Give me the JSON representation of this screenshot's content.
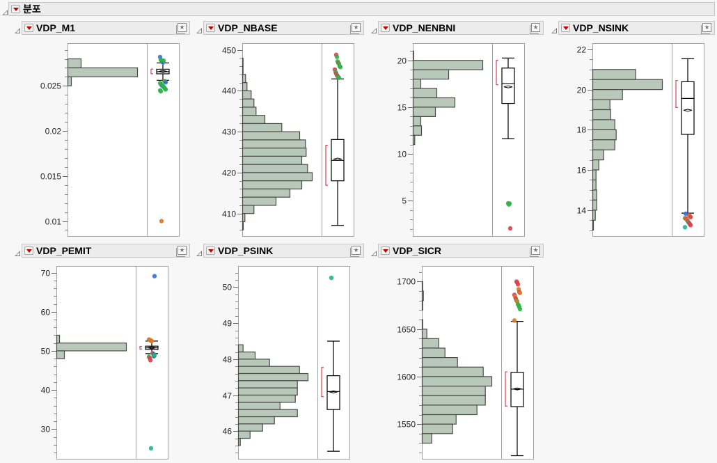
{
  "report": {
    "title": "분포"
  },
  "colors": {
    "bar_fill": "#b9c9b9",
    "bar_stroke": "#4a4a4a",
    "bracket": "#d8414f",
    "blue": "#3b6fd8",
    "green": "#2fb34a",
    "orange": "#d77a2a",
    "red": "#d8414f",
    "teal": "#22b38a"
  },
  "chart_data": [
    {
      "type": "histogram+boxplot",
      "title": "VDP_M1",
      "ylim": [
        0.00834,
        0.02974
      ],
      "ticks": [
        {
          "value": 0.025,
          "label": "0.025"
        },
        {
          "value": 0.02,
          "label": "0.02"
        },
        {
          "value": 0.015,
          "label": "0.015"
        },
        {
          "value": 0.01,
          "label": "0.01"
        }
      ],
      "minor_step": 0.001,
      "bins": [
        {
          "lo": 0.027,
          "hi": 0.028,
          "rel": 19
        },
        {
          "lo": 0.026,
          "hi": 0.027,
          "rel": 100
        },
        {
          "lo": 0.025,
          "hi": 0.026,
          "rel": 5
        }
      ],
      "box": {
        "whisker_low": 0.02562,
        "q1": 0.02634,
        "median": 0.02657,
        "q3": 0.02685,
        "whisker_high": 0.02755,
        "mean": 0.0266
      },
      "shortest_half": [
        0.02635,
        0.02685
      ],
      "outliers": [
        [
          "blue",
          0.0282
        ],
        [
          "green",
          0.0279
        ],
        [
          "green",
          0.0278
        ],
        [
          "green",
          0.0277
        ],
        [
          "blue",
          0.0276
        ],
        [
          "green",
          0.0278
        ],
        [
          "orange",
          0.0255
        ],
        [
          "green",
          0.0255
        ],
        [
          "blue",
          0.0254
        ],
        [
          "green",
          0.0253
        ],
        [
          "green",
          0.0252
        ],
        [
          "green",
          0.0251
        ],
        [
          "blue",
          0.025
        ],
        [
          "green",
          0.025
        ],
        [
          "green",
          0.0249
        ],
        [
          "green",
          0.0248
        ],
        [
          "green",
          0.0247
        ],
        [
          "green",
          0.0246
        ],
        [
          "green",
          0.0245
        ],
        [
          "green",
          0.0244
        ],
        [
          "orange",
          0.01
        ]
      ]
    },
    {
      "type": "histogram+boxplot",
      "title": "VDP_NBASE",
      "ylim": [
        404.5,
        451.65
      ],
      "ticks": [
        {
          "value": 450,
          "label": "450"
        },
        {
          "value": 440,
          "label": "440"
        },
        {
          "value": 430,
          "label": "430"
        },
        {
          "value": 420,
          "label": "420"
        },
        {
          "value": 410,
          "label": "410"
        }
      ],
      "minor_step": 2,
      "bins": [
        {
          "lo": 446,
          "hi": 448,
          "rel": 0.7
        },
        {
          "lo": 444,
          "hi": 446,
          "rel": 0.7
        },
        {
          "lo": 442,
          "hi": 444,
          "rel": 4.3
        },
        {
          "lo": 440,
          "hi": 442,
          "rel": 6.3
        },
        {
          "lo": 438,
          "hi": 440,
          "rel": 12.3
        },
        {
          "lo": 436,
          "hi": 438,
          "rel": 16.3
        },
        {
          "lo": 434,
          "hi": 436,
          "rel": 19.3
        },
        {
          "lo": 432,
          "hi": 434,
          "rel": 32
        },
        {
          "lo": 430,
          "hi": 432,
          "rel": 56.3
        },
        {
          "lo": 428,
          "hi": 430,
          "rel": 82
        },
        {
          "lo": 426,
          "hi": 428,
          "rel": 90.3
        },
        {
          "lo": 424,
          "hi": 426,
          "rel": 91.3
        },
        {
          "lo": 422,
          "hi": 424,
          "rel": 85
        },
        {
          "lo": 420,
          "hi": 422,
          "rel": 93.3
        },
        {
          "lo": 418,
          "hi": 420,
          "rel": 100
        },
        {
          "lo": 416,
          "hi": 418,
          "rel": 85
        },
        {
          "lo": 414,
          "hi": 416,
          "rel": 68
        },
        {
          "lo": 412,
          "hi": 414,
          "rel": 48
        },
        {
          "lo": 410,
          "hi": 412,
          "rel": 16.3
        },
        {
          "lo": 408,
          "hi": 410,
          "rel": 3.3
        },
        {
          "lo": 406,
          "hi": 408,
          "rel": 1
        }
      ],
      "box": {
        "whisker_low": 407.1,
        "q1": 418.0,
        "median": 423.0,
        "q3": 428.1,
        "whisker_high": 442.9,
        "mean": 423.3
      },
      "shortest_half": [
        416.9,
        426.7
      ],
      "outliers": [
        [
          "red",
          448.8
        ],
        [
          "green",
          448.3
        ],
        [
          "green",
          447.2
        ],
        [
          "red",
          446.8
        ],
        [
          "green",
          446.6
        ],
        [
          "green",
          446.0
        ],
        [
          "green",
          445.8
        ],
        [
          "red",
          445.2
        ],
        [
          "green",
          444.6
        ],
        [
          "red",
          444.2
        ],
        [
          "green",
          443.8
        ],
        [
          "red",
          443.6
        ],
        [
          "green",
          443.3
        ],
        [
          "green",
          443.2
        ]
      ]
    },
    {
      "type": "histogram+boxplot",
      "title": "VDP_NENBNI",
      "ylim": [
        1.23,
        21.84
      ],
      "ticks": [
        {
          "value": 20,
          "label": "20"
        },
        {
          "value": 15,
          "label": "15"
        },
        {
          "value": 10,
          "label": "10"
        },
        {
          "value": 5,
          "label": "5"
        }
      ],
      "minor_step": 1,
      "bins": [
        {
          "lo": 20,
          "hi": 21,
          "rel": 0.7
        },
        {
          "lo": 19,
          "hi": 20,
          "rel": 100
        },
        {
          "lo": 18,
          "hi": 19,
          "rel": 51
        },
        {
          "lo": 17,
          "hi": 18,
          "rel": 11
        },
        {
          "lo": 16,
          "hi": 17,
          "rel": 34
        },
        {
          "lo": 15,
          "hi": 16,
          "rel": 60
        },
        {
          "lo": 14,
          "hi": 15,
          "rel": 32
        },
        {
          "lo": 13,
          "hi": 14,
          "rel": 11
        },
        {
          "lo": 12,
          "hi": 13,
          "rel": 12
        },
        {
          "lo": 11,
          "hi": 12,
          "rel": 2.3
        }
      ],
      "box": {
        "whisker_low": 11.63,
        "q1": 15.4,
        "median": 17.52,
        "q3": 19.18,
        "whisker_high": 20.25,
        "mean": 17.17
      },
      "shortest_half": [
        17.4,
        20.0
      ],
      "outliers": [
        [
          "green",
          4.72
        ],
        [
          "green",
          4.6
        ],
        [
          "green",
          4.7
        ],
        [
          "red",
          2.05
        ]
      ]
    },
    {
      "type": "histogram+boxplot",
      "title": "VDP_NSINK",
      "ylim": [
        12.71,
        22.31
      ],
      "ticks": [
        {
          "value": 22,
          "label": "22"
        },
        {
          "value": 20,
          "label": "20"
        },
        {
          "value": 18,
          "label": "18"
        },
        {
          "value": 16,
          "label": "16"
        },
        {
          "value": 14,
          "label": "14"
        }
      ],
      "minor_step": 0.5,
      "bins": [
        {
          "lo": 20.5,
          "hi": 21,
          "rel": 61.7
        },
        {
          "lo": 20,
          "hi": 20.5,
          "rel": 100
        },
        {
          "lo": 19.5,
          "hi": 20,
          "rel": 42.7
        },
        {
          "lo": 19,
          "hi": 19.5,
          "rel": 24.7
        },
        {
          "lo": 18.5,
          "hi": 19,
          "rel": 25.7
        },
        {
          "lo": 18,
          "hi": 18.5,
          "rel": 31.7
        },
        {
          "lo": 17.5,
          "hi": 18,
          "rel": 33.7
        },
        {
          "lo": 17,
          "hi": 17.5,
          "rel": 31.7
        },
        {
          "lo": 16.5,
          "hi": 17,
          "rel": 15.7
        },
        {
          "lo": 16,
          "hi": 16.5,
          "rel": 8.7
        },
        {
          "lo": 15.5,
          "hi": 16,
          "rel": 4.7
        },
        {
          "lo": 15,
          "hi": 15.5,
          "rel": 4.7
        },
        {
          "lo": 14.5,
          "hi": 15,
          "rel": 5.7
        },
        {
          "lo": 14,
          "hi": 14.5,
          "rel": 5.7
        },
        {
          "lo": 13.5,
          "hi": 14,
          "rel": 3.7
        },
        {
          "lo": 13,
          "hi": 13.5,
          "rel": 1
        }
      ],
      "box": {
        "whisker_low": 13.85,
        "q1": 17.77,
        "median": 19.56,
        "q3": 20.39,
        "whisker_high": 21.54,
        "mean": 18.97
      },
      "shortest_half": [
        19.11,
        20.45
      ],
      "outliers": [
        [
          "red",
          13.75
        ],
        [
          "orange",
          13.7
        ],
        [
          "red",
          13.65
        ],
        [
          "teal",
          13.6
        ],
        [
          "orange",
          13.6
        ],
        [
          "red",
          13.55
        ],
        [
          "orange",
          13.5
        ],
        [
          "red",
          13.45
        ],
        [
          "teal",
          13.4
        ],
        [
          "red",
          13.35
        ],
        [
          "red",
          13.3
        ],
        [
          "red",
          13.25
        ],
        [
          "teal",
          13.15
        ],
        [
          "blue",
          13.82
        ]
      ]
    },
    {
      "type": "histogram+boxplot",
      "title": "VDP_PEMIT",
      "ylim": [
        22.4,
        71.7
      ],
      "ticks": [
        {
          "value": 70,
          "label": "70"
        },
        {
          "value": 60,
          "label": "60"
        },
        {
          "value": 50,
          "label": "50"
        },
        {
          "value": 40,
          "label": "40"
        },
        {
          "value": 30,
          "label": "30"
        }
      ],
      "minor_step": 2,
      "bins": [
        {
          "lo": 52,
          "hi": 54,
          "rel": 4
        },
        {
          "lo": 50,
          "hi": 52,
          "rel": 100
        },
        {
          "lo": 48,
          "hi": 50,
          "rel": 11
        }
      ],
      "box": {
        "whisker_low": 49.3,
        "q1": 50.36,
        "median": 50.77,
        "q3": 51.2,
        "whisker_high": 52.5,
        "mean": 50.8
      },
      "shortest_half": [
        50.45,
        51.1
      ],
      "outliers": [
        [
          "blue",
          69.1
        ],
        [
          "orange",
          52.9
        ],
        [
          "orange",
          52.8
        ],
        [
          "orange",
          52.7
        ],
        [
          "orange",
          52.6
        ],
        [
          "orange",
          52.5
        ],
        [
          "orange",
          49.4
        ],
        [
          "blue",
          49.3
        ],
        [
          "blue",
          48.6
        ],
        [
          "green",
          48.8
        ],
        [
          "green",
          48.5
        ],
        [
          "red",
          48.2
        ],
        [
          "red",
          47.6
        ],
        [
          "teal",
          25.1
        ]
      ]
    },
    {
      "type": "histogram+boxplot",
      "title": "VDP_PSINK",
      "ylim": [
        45.23,
        50.59
      ],
      "ticks": [
        {
          "value": 50,
          "label": "50"
        },
        {
          "value": 49,
          "label": "49"
        },
        {
          "value": 48,
          "label": "48"
        },
        {
          "value": 47,
          "label": "47"
        },
        {
          "value": 46,
          "label": "46"
        }
      ],
      "minor_step": 0.2,
      "bins": [
        {
          "lo": 48.2,
          "hi": 48.4,
          "rel": 6.7
        },
        {
          "lo": 48.0,
          "hi": 48.2,
          "rel": 24
        },
        {
          "lo": 47.8,
          "hi": 48.0,
          "rel": 44.7
        },
        {
          "lo": 47.6,
          "hi": 47.8,
          "rel": 87.7
        },
        {
          "lo": 47.4,
          "hi": 47.6,
          "rel": 100
        },
        {
          "lo": 47.2,
          "hi": 47.4,
          "rel": 84.7
        },
        {
          "lo": 47.0,
          "hi": 47.2,
          "rel": 84.7
        },
        {
          "lo": 46.8,
          "hi": 47.0,
          "rel": 81.7
        },
        {
          "lo": 46.6,
          "hi": 46.8,
          "rel": 59.7
        },
        {
          "lo": 46.4,
          "hi": 46.6,
          "rel": 84.7
        },
        {
          "lo": 46.2,
          "hi": 46.4,
          "rel": 51.7
        },
        {
          "lo": 46.0,
          "hi": 46.2,
          "rel": 34.7
        },
        {
          "lo": 45.8,
          "hi": 46.0,
          "rel": 16.7
        },
        {
          "lo": 45.6,
          "hi": 45.8,
          "rel": 2.7
        }
      ],
      "box": {
        "whisker_low": 45.44,
        "q1": 46.6,
        "median": 47.1,
        "q3": 47.54,
        "whisker_high": 48.5,
        "mean": 47.09
      },
      "shortest_half": [
        46.96,
        47.77
      ],
      "outliers": [
        [
          "teal",
          50.26
        ]
      ]
    },
    {
      "type": "histogram+boxplot",
      "title": "VDP_SICR",
      "ylim": [
        1513.5,
        1716.4
      ],
      "ticks": [
        {
          "value": 1700,
          "label": "1700"
        },
        {
          "value": 1650,
          "label": "1650"
        },
        {
          "value": 1600,
          "label": "1600"
        },
        {
          "value": 1550,
          "label": "1550"
        }
      ],
      "minor_step": 10,
      "bins": [
        {
          "lo": 1690,
          "hi": 1700,
          "rel": 0.7
        },
        {
          "lo": 1680,
          "hi": 1690,
          "rel": 1.7
        },
        {
          "lo": 1670,
          "hi": 1680,
          "rel": 0.7
        },
        {
          "lo": 1650,
          "hi": 1660,
          "rel": 0.7
        },
        {
          "lo": 1640,
          "hi": 1650,
          "rel": 6.7
        },
        {
          "lo": 1630,
          "hi": 1640,
          "rel": 23.7
        },
        {
          "lo": 1620,
          "hi": 1630,
          "rel": 32.7
        },
        {
          "lo": 1610,
          "hi": 1620,
          "rel": 50.7
        },
        {
          "lo": 1600,
          "hi": 1610,
          "rel": 87.7
        },
        {
          "lo": 1590,
          "hi": 1600,
          "rel": 100
        },
        {
          "lo": 1580,
          "hi": 1590,
          "rel": 90.7
        },
        {
          "lo": 1570,
          "hi": 1580,
          "rel": 90.7
        },
        {
          "lo": 1560,
          "hi": 1570,
          "rel": 78.7
        },
        {
          "lo": 1550,
          "hi": 1560,
          "rel": 48.7
        },
        {
          "lo": 1540,
          "hi": 1550,
          "rel": 43.7
        },
        {
          "lo": 1530,
          "hi": 1540,
          "rel": 13.7
        }
      ],
      "box": {
        "whisker_low": 1516.8,
        "q1": 1568.4,
        "median": 1586.8,
        "q3": 1604.4,
        "whisker_high": 1658.1,
        "mean": 1587
      },
      "shortest_half": [
        1569,
        1605
      ],
      "outliers": [
        [
          "red",
          1700
        ],
        [
          "red",
          1699
        ],
        [
          "red",
          1697
        ],
        [
          "orange",
          1692
        ],
        [
          "red",
          1689
        ],
        [
          "orange",
          1688
        ],
        [
          "red",
          1686
        ],
        [
          "orange",
          1684
        ],
        [
          "red",
          1682
        ],
        [
          "green",
          1680
        ],
        [
          "orange",
          1679
        ],
        [
          "green",
          1676
        ],
        [
          "green",
          1675
        ],
        [
          "green",
          1673
        ],
        [
          "green",
          1671
        ],
        [
          "orange",
          1659
        ]
      ]
    }
  ]
}
